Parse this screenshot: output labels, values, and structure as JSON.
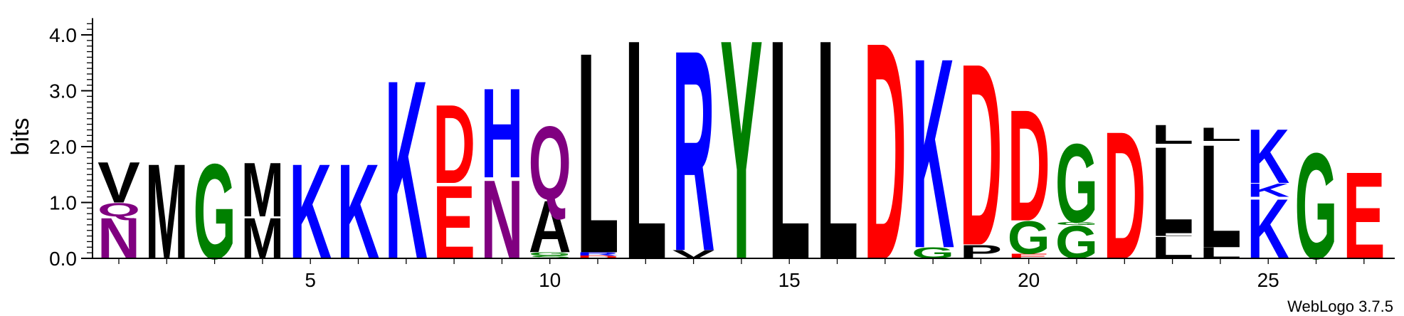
{
  "chart_data": {
    "type": "sequence-logo",
    "ylabel": "bits",
    "ylim": [
      0,
      4.3
    ],
    "yticks": [
      "0.0",
      "1.0",
      "2.0",
      "3.0",
      "4.0"
    ],
    "xticks": [
      5,
      10,
      15,
      20,
      25
    ],
    "positions": [
      1,
      2,
      3,
      4,
      5,
      6,
      7,
      8,
      9,
      10,
      11,
      12,
      13,
      14,
      15,
      16,
      17,
      18,
      19,
      20,
      21,
      22,
      23,
      24,
      25,
      26,
      27
    ],
    "stacks": [
      {
        "pos": 1,
        "letters": [
          {
            "l": "N",
            "h": 0.75
          },
          {
            "l": "Q",
            "h": 0.25
          },
          {
            "l": "V",
            "h": 0.75
          }
        ]
      },
      {
        "pos": 2,
        "letters": [
          {
            "l": "M",
            "h": 1.75
          }
        ]
      },
      {
        "pos": 3,
        "letters": [
          {
            "l": "G",
            "h": 1.75
          }
        ]
      },
      {
        "pos": 4,
        "letters": [
          {
            "l": "M",
            "h": 0.75
          },
          {
            "l": "M",
            "h": 1.0
          }
        ]
      },
      {
        "pos": 5,
        "letters": [
          {
            "l": "K",
            "h": 1.75
          }
        ]
      },
      {
        "pos": 6,
        "letters": [
          {
            "l": "K",
            "h": 1.75
          }
        ]
      },
      {
        "pos": 7,
        "letters": [
          {
            "l": "K",
            "h": 3.3
          }
        ]
      },
      {
        "pos": 8,
        "letters": [
          {
            "l": "E",
            "h": 1.35
          },
          {
            "l": "D",
            "h": 1.45
          }
        ]
      },
      {
        "pos": 9,
        "letters": [
          {
            "l": "N",
            "h": 1.45
          },
          {
            "l": "H",
            "h": 1.65
          }
        ]
      },
      {
        "pos": 10,
        "letters": [
          {
            "l": "S",
            "h": 0.05
          },
          {
            "l": "G",
            "h": 0.06
          },
          {
            "l": "A",
            "h": 0.95
          },
          {
            "l": "Q",
            "h": 1.35
          }
        ]
      },
      {
        "pos": 11,
        "letters": [
          {
            "l": "D",
            "h": 0.05
          },
          {
            "l": "R",
            "h": 0.06
          },
          {
            "l": "L",
            "h": 3.7
          }
        ]
      },
      {
        "pos": 12,
        "letters": [
          {
            "l": "L",
            "h": 4.05
          }
        ]
      },
      {
        "pos": 13,
        "letters": [
          {
            "l": "V",
            "h": 0.15
          },
          {
            "l": "R",
            "h": 3.7
          }
        ]
      },
      {
        "pos": 14,
        "letters": [
          {
            "l": "Y",
            "h": 4.05
          }
        ]
      },
      {
        "pos": 15,
        "letters": [
          {
            "l": "L",
            "h": 4.05
          }
        ]
      },
      {
        "pos": 16,
        "letters": [
          {
            "l": "L",
            "h": 4.05
          }
        ]
      },
      {
        "pos": 17,
        "letters": [
          {
            "l": "D",
            "h": 4.0
          }
        ]
      },
      {
        "pos": 18,
        "letters": [
          {
            "l": "G",
            "h": 0.2
          },
          {
            "l": "K",
            "h": 3.5
          }
        ]
      },
      {
        "pos": 19,
        "letters": [
          {
            "l": "P",
            "h": 0.25
          },
          {
            "l": "D",
            "h": 3.35
          }
        ]
      },
      {
        "pos": 20,
        "letters": [
          {
            "l": "E",
            "h": 0.08
          },
          {
            "l": "G",
            "h": 0.6
          },
          {
            "l": "D",
            "h": 2.05
          }
        ]
      },
      {
        "pos": 21,
        "letters": [
          {
            "l": "G",
            "h": 0.6
          },
          {
            "l": "G",
            "h": 0.05
          },
          {
            "l": "G",
            "h": 1.45
          }
        ]
      },
      {
        "pos": 22,
        "letters": [
          {
            "l": "D",
            "h": 2.35
          }
        ]
      },
      {
        "pos": 23,
        "letters": [
          {
            "l": "L",
            "h": 0.4
          },
          {
            "l": "L",
            "h": 0.05
          },
          {
            "l": "L",
            "h": 1.6
          },
          {
            "l": "L",
            "h": 0.35
          }
        ]
      },
      {
        "pos": 24,
        "letters": [
          {
            "l": "L",
            "h": 0.2
          },
          {
            "l": "L",
            "h": 1.9
          },
          {
            "l": "L",
            "h": 0.25
          }
        ]
      },
      {
        "pos": 25,
        "letters": [
          {
            "l": "K",
            "h": 1.1
          },
          {
            "l": "K",
            "h": 0.25
          },
          {
            "l": "K",
            "h": 1.0
          }
        ]
      },
      {
        "pos": 26,
        "letters": [
          {
            "l": "G",
            "h": 1.95
          }
        ]
      },
      {
        "pos": 27,
        "letters": [
          {
            "l": "E",
            "h": 1.6
          }
        ]
      }
    ]
  },
  "colors": {
    "acidic": "#ff0000",
    "basic": "#0000ff",
    "hydrophobic": "#000000",
    "polar": "#008000",
    "amide": "#800080",
    "axis": "#000000"
  },
  "credit": "WebLogo 3.7.5"
}
